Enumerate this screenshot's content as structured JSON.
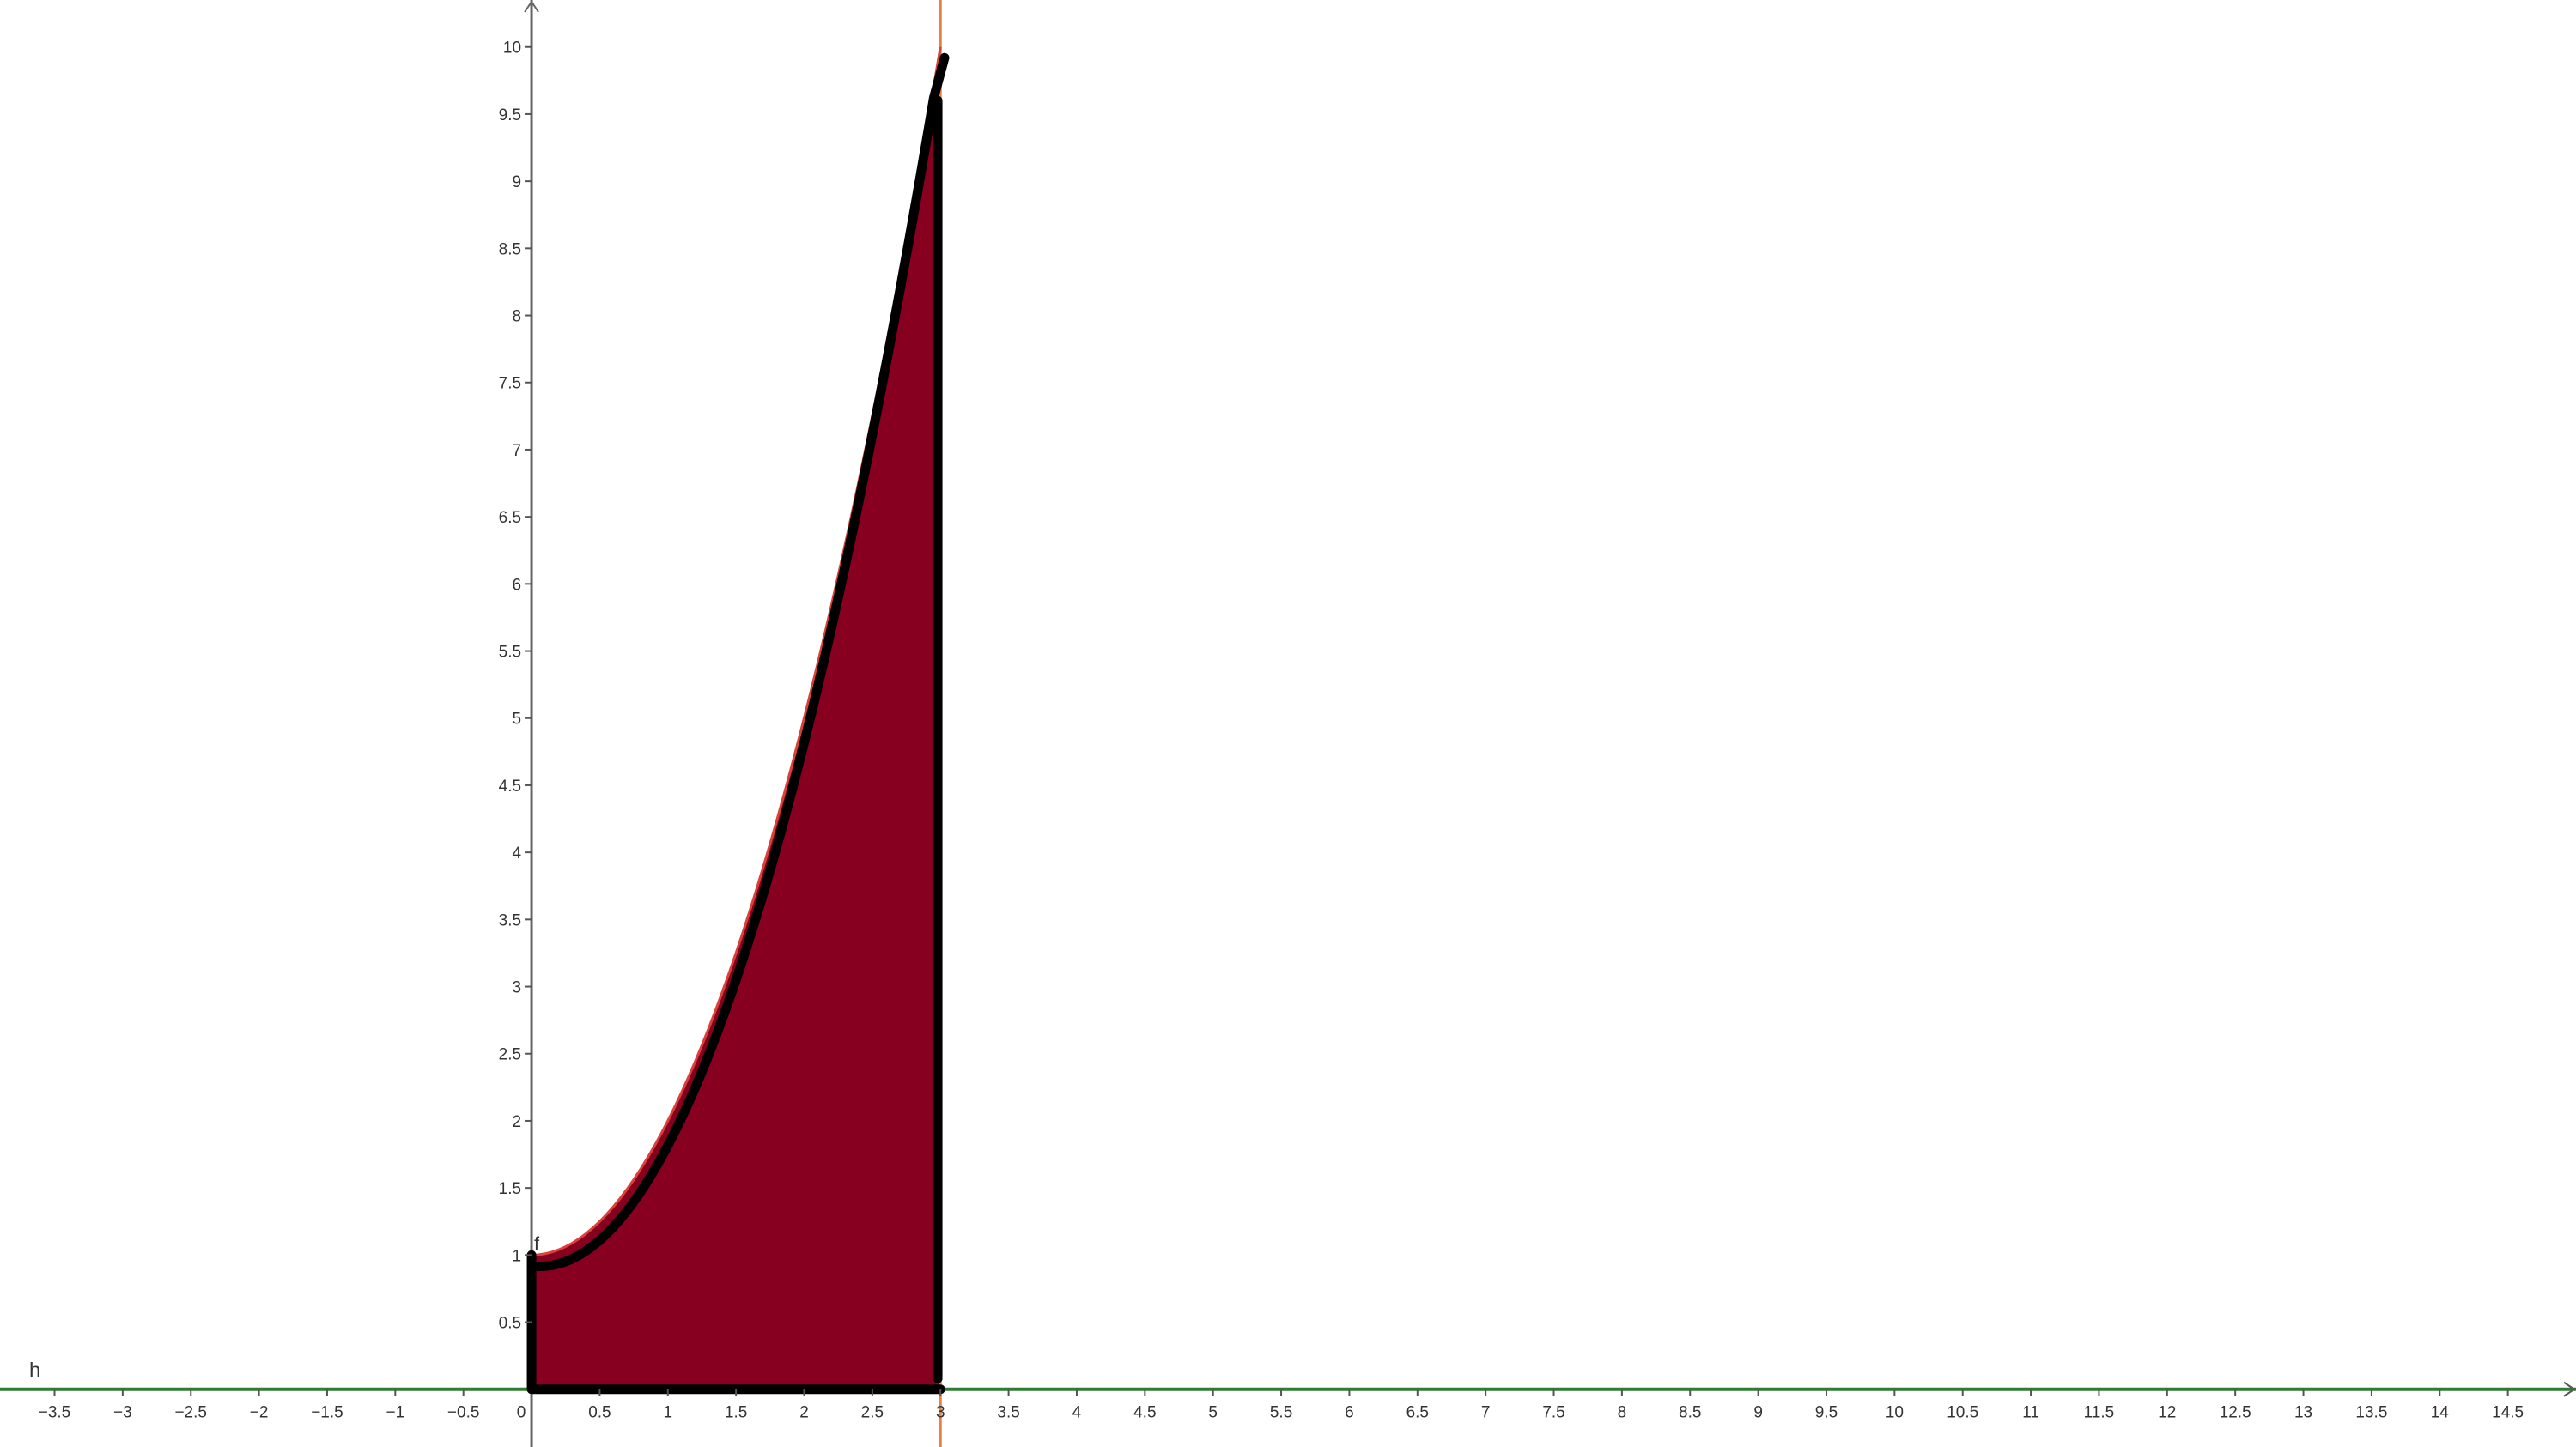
{
  "chart_data": {
    "type": "area",
    "function_label": "f",
    "line_label": "h",
    "x_ticks": [
      "-3.5",
      "-3",
      "-2.5",
      "-2",
      "-1.5",
      "-1",
      "-0.5",
      "0",
      "0.5",
      "1",
      "1.5",
      "2",
      "2.5",
      "3",
      "3.5",
      "4",
      "4.5",
      "5",
      "5.5",
      "6",
      "6.5",
      "7",
      "7.5",
      "8",
      "8.5",
      "9",
      "9.5",
      "10",
      "10.5",
      "11",
      "11.5",
      "12",
      "12.5",
      "13",
      "13.5",
      "14",
      "14.5"
    ],
    "y_ticks": [
      "0.5",
      "1",
      "1.5",
      "2",
      "2.5",
      "3",
      "3.5",
      "4",
      "4.5",
      "5",
      "5.5",
      "6",
      "6.5",
      "7",
      "7.5",
      "8",
      "8.5",
      "9",
      "9.5",
      "10"
    ],
    "xlim": [
      -3.9,
      15.0
    ],
    "ylim": [
      -0.43,
      10.35
    ],
    "curve": {
      "x": [
        0,
        0.5,
        1,
        1.5,
        2,
        2.5,
        3
      ],
      "y": [
        1,
        1.25,
        2,
        3.25,
        5,
        7.25,
        10
      ]
    },
    "shaded_interval": [
      0,
      3
    ],
    "vertical_line_x": 3,
    "grid": false,
    "colors": {
      "fill": "#870020",
      "curve": "#d9413a",
      "outline": "#000000",
      "vertical_line": "#e8803f",
      "x_axis_line": "#2e7d32",
      "y_axis": "#666666"
    }
  }
}
